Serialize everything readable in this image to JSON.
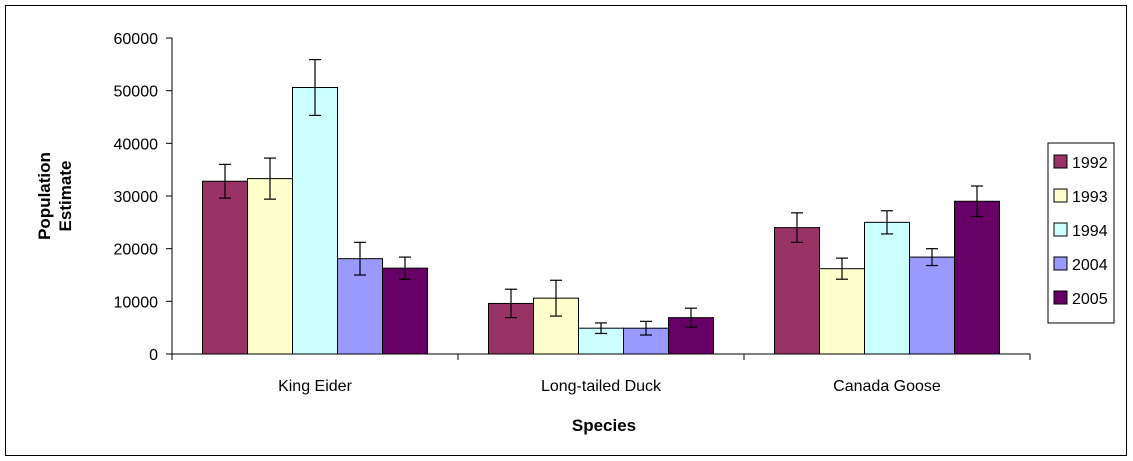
{
  "chart_data": {
    "type": "bar",
    "title": "",
    "xlabel": "Species",
    "ylabel_lines": [
      "Population",
      "Estimate"
    ],
    "ylim": [
      0,
      60000
    ],
    "y_ticks": [
      0,
      10000,
      20000,
      30000,
      40000,
      50000,
      60000
    ],
    "y_tick_labels": [
      "0",
      "10000",
      "20000",
      "30000",
      "40000",
      "50000",
      "60000"
    ],
    "categories": [
      "King Eider",
      "Long-tailed Duck",
      "Canada Goose"
    ],
    "grid": false,
    "legend_position": "right",
    "error_bars": true,
    "series": [
      {
        "name": "1992",
        "color": "#993366",
        "values": [
          32800,
          9600,
          24000
        ],
        "errors": [
          3200,
          2700,
          2800
        ]
      },
      {
        "name": "1993",
        "color": "#FFFFCC",
        "values": [
          33300,
          10600,
          16200
        ],
        "errors": [
          3900,
          3400,
          2000
        ]
      },
      {
        "name": "1994",
        "color": "#CCFFFF",
        "values": [
          50600,
          4900,
          25000
        ],
        "errors": [
          5300,
          1000,
          2200
        ]
      },
      {
        "name": "2004",
        "color": "#9999FF",
        "values": [
          18100,
          4900,
          18400
        ],
        "errors": [
          3100,
          1300,
          1600
        ]
      },
      {
        "name": "2005",
        "color": "#660066",
        "values": [
          16300,
          6900,
          29000
        ],
        "errors": [
          2100,
          1800,
          2900
        ]
      }
    ]
  }
}
